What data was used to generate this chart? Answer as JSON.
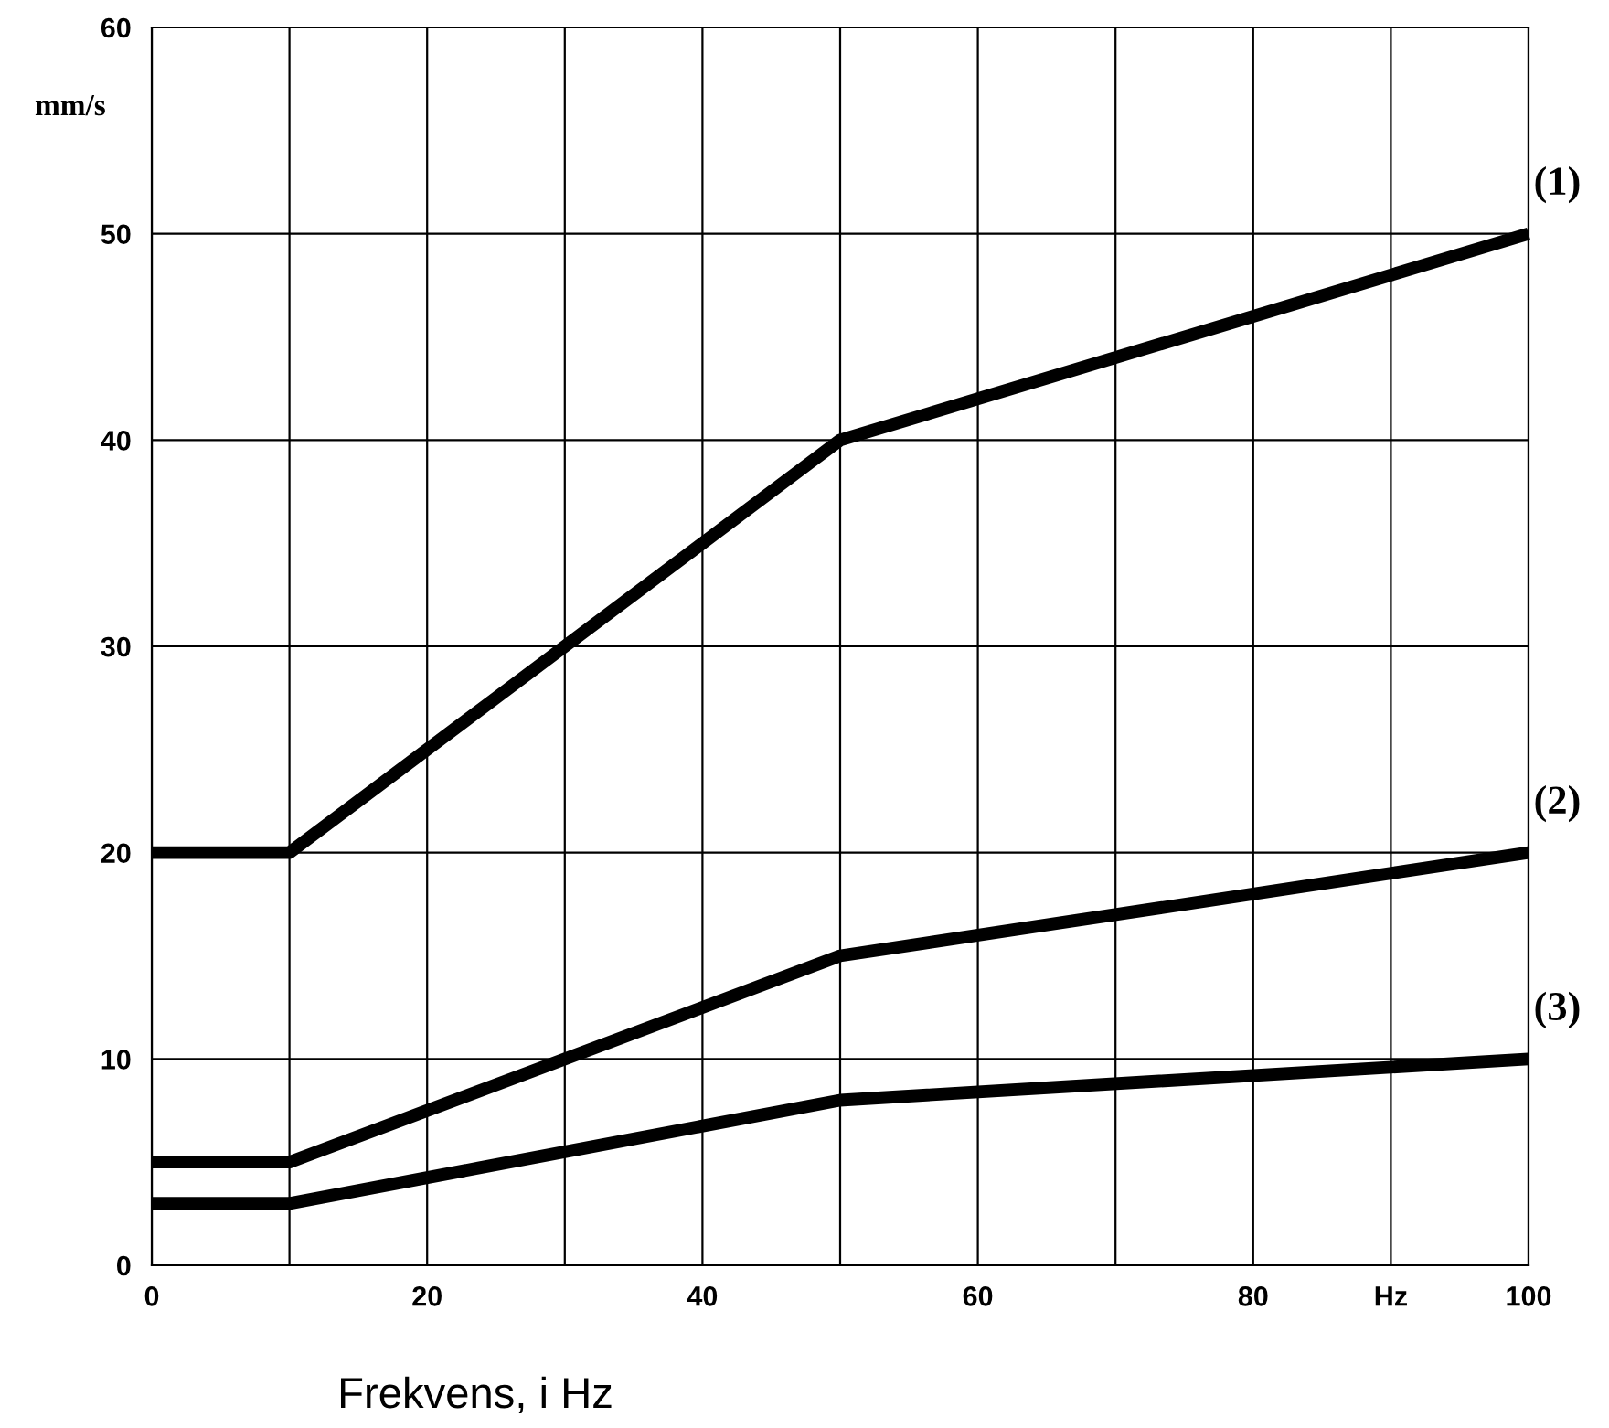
{
  "chart_data": {
    "type": "line",
    "xlabel": "Frekvens, i Hz",
    "ylabel": "mm/s",
    "xlim": [
      0,
      100
    ],
    "ylim": [
      0,
      60
    ],
    "xticks": [
      0,
      {
        "value": 10,
        "label": null
      },
      20,
      {
        "value": 30,
        "label": null
      },
      40,
      {
        "value": 50,
        "label": null
      },
      60,
      {
        "value": 70,
        "label": null
      },
      80,
      {
        "value": 90,
        "label": "Hz"
      },
      100
    ],
    "yticks": [
      0,
      10,
      20,
      30,
      40,
      50,
      60
    ],
    "grid": true,
    "legend": false,
    "marker": "none",
    "line_style": "solid",
    "series": [
      {
        "name": "(1)",
        "color": "#000000",
        "x": [
          0,
          10,
          50,
          100
        ],
        "values": [
          20,
          20,
          40,
          50
        ]
      },
      {
        "name": "(2)",
        "color": "#000000",
        "x": [
          0,
          10,
          50,
          100
        ],
        "values": [
          5,
          5,
          15,
          20
        ]
      },
      {
        "name": "(3)",
        "color": "#000000",
        "x": [
          0,
          10,
          50,
          100
        ],
        "values": [
          3,
          3,
          8,
          10
        ]
      }
    ]
  }
}
